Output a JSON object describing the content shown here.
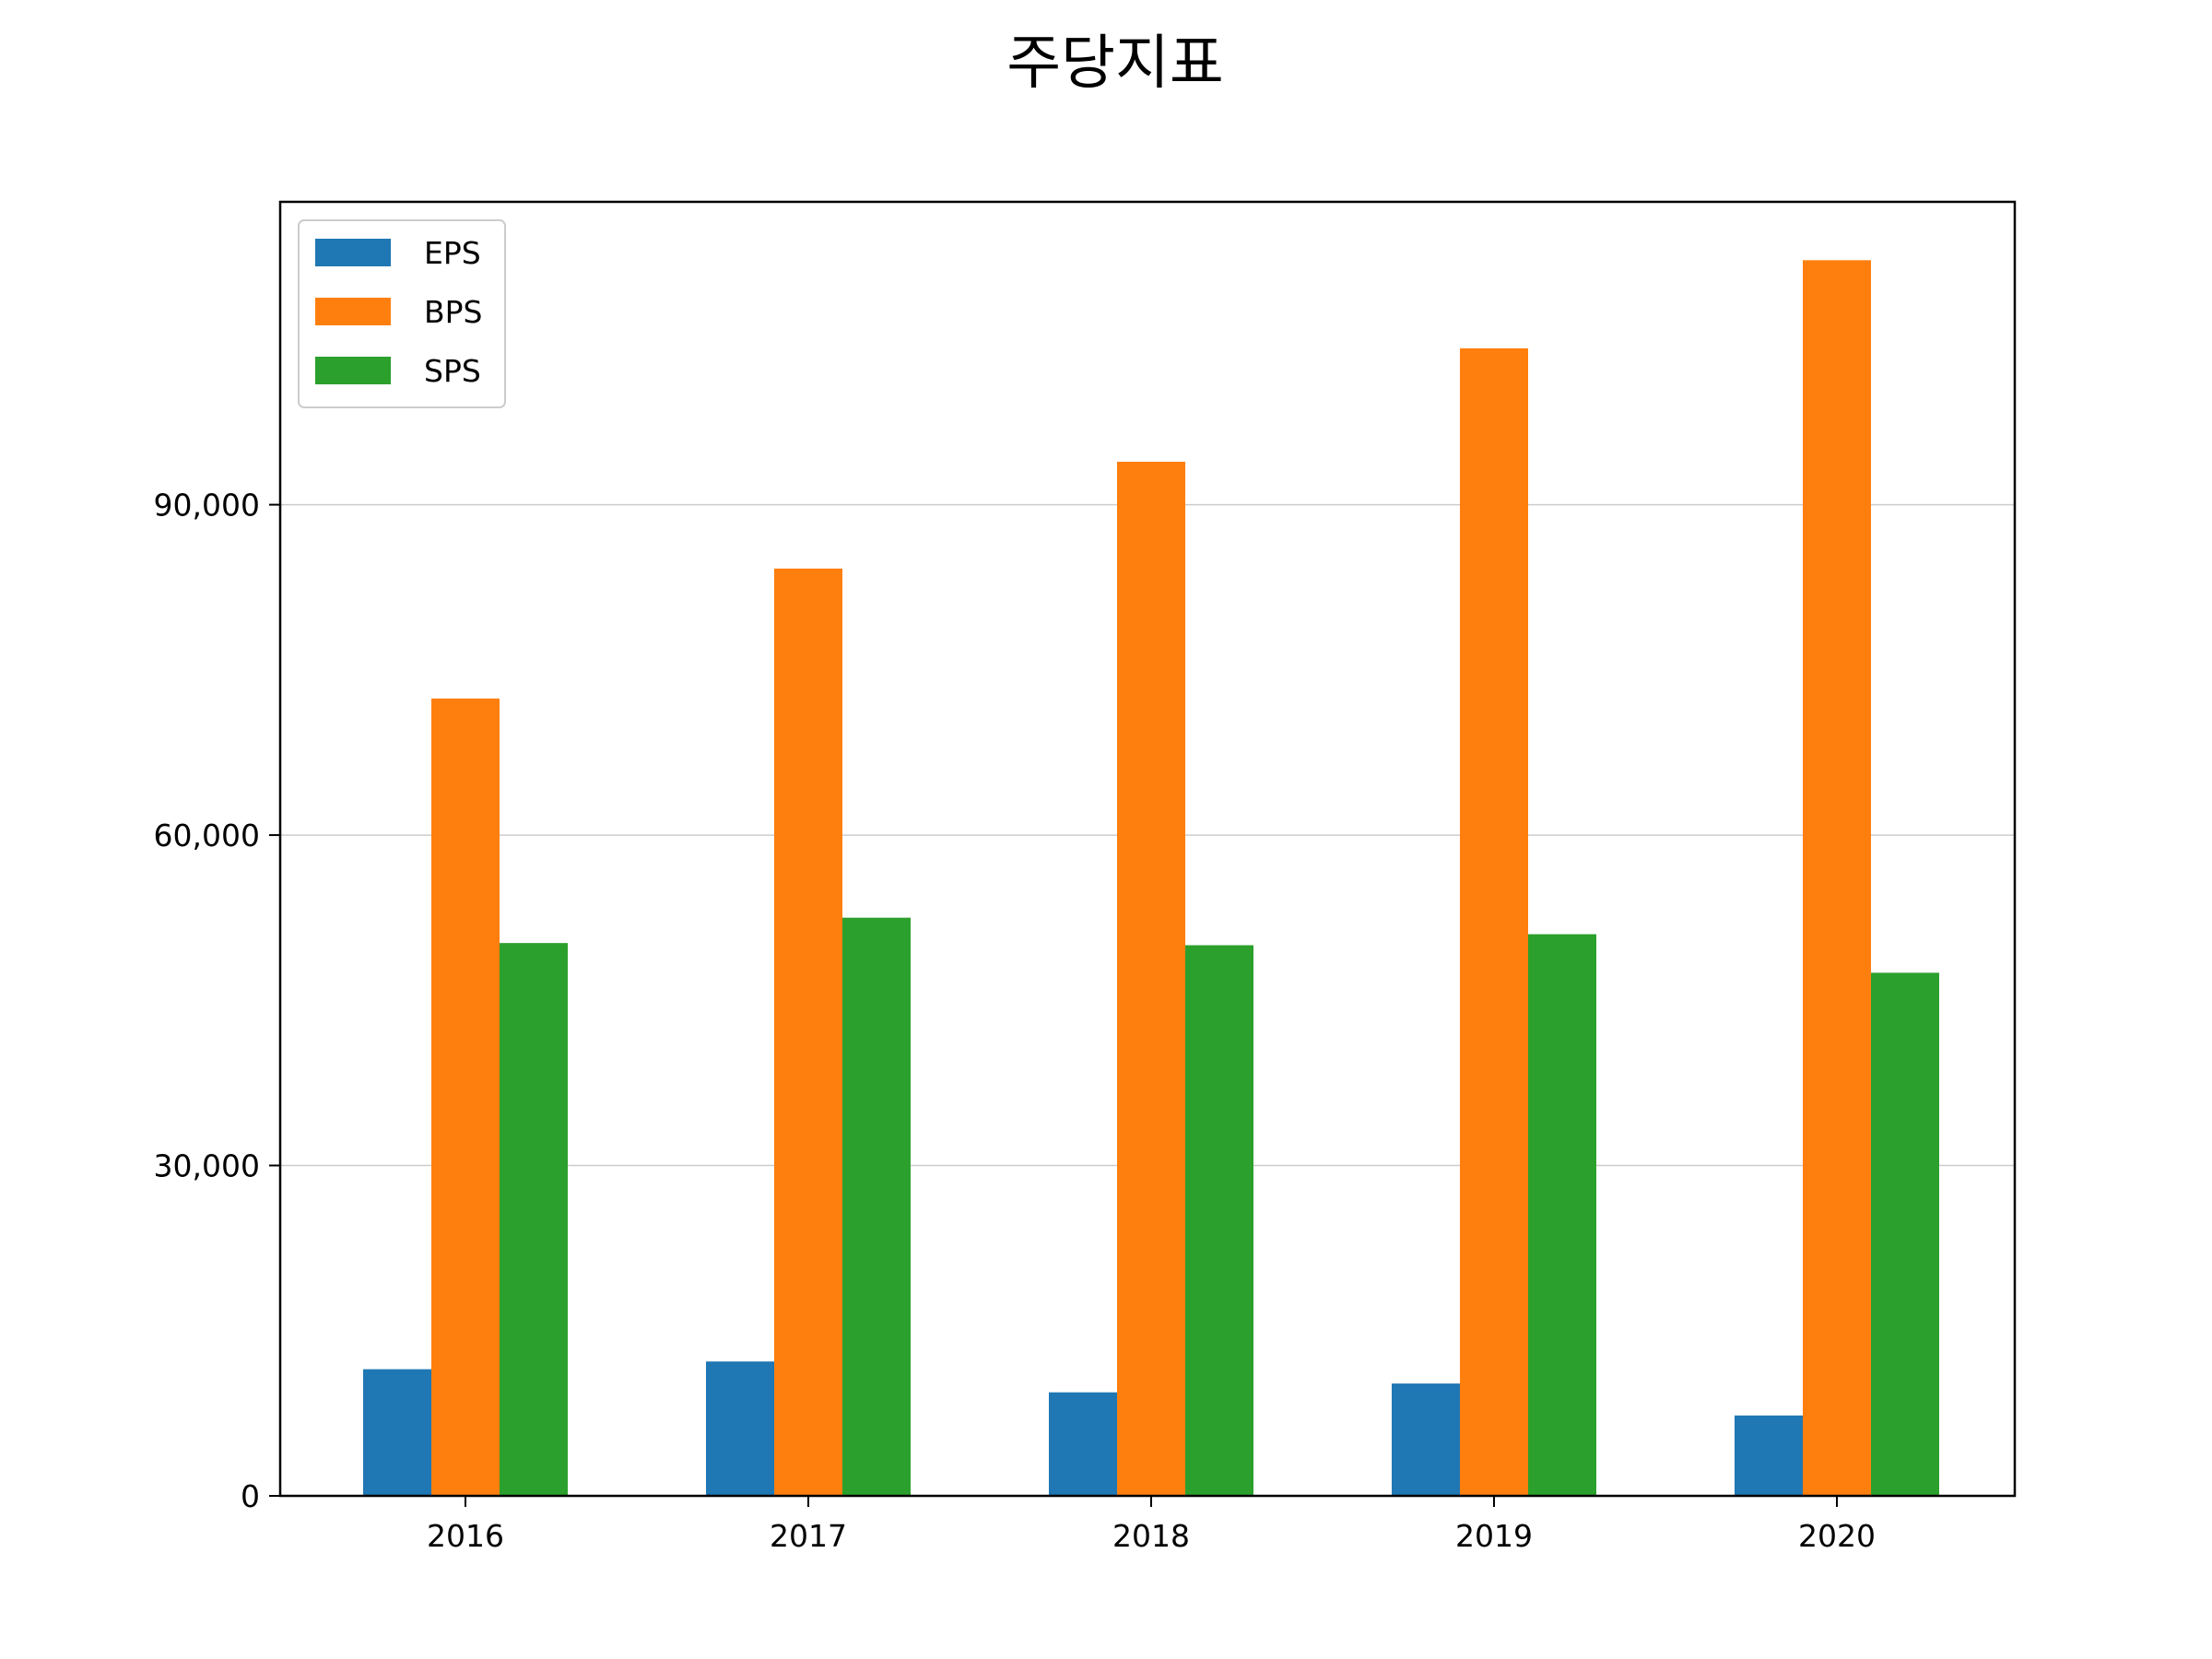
{
  "chart_data": {
    "type": "bar",
    "title": "주당지표",
    "xlabel": "",
    "ylabel": "",
    "categories": [
      "2016",
      "2017",
      "2018",
      "2019",
      "2020"
    ],
    "series": [
      {
        "name": "EPS",
        "color": "#1f77b4",
        "values": [
          11500,
          12200,
          9400,
          10200,
          7300
        ]
      },
      {
        "name": "BPS",
        "color": "#ff7f0e",
        "values": [
          72400,
          84200,
          93900,
          104200,
          112200
        ]
      },
      {
        "name": "SPS",
        "color": "#2ca02c",
        "values": [
          50200,
          52500,
          50000,
          51000,
          47500
        ]
      }
    ],
    "ylim": [
      0,
      117500
    ],
    "yticks": [
      0,
      30000,
      60000,
      90000
    ],
    "ytick_labels": [
      "0",
      "30,000",
      "60,000",
      "90,000"
    ],
    "grid": "horizontal",
    "legend_position": "upper-left"
  }
}
